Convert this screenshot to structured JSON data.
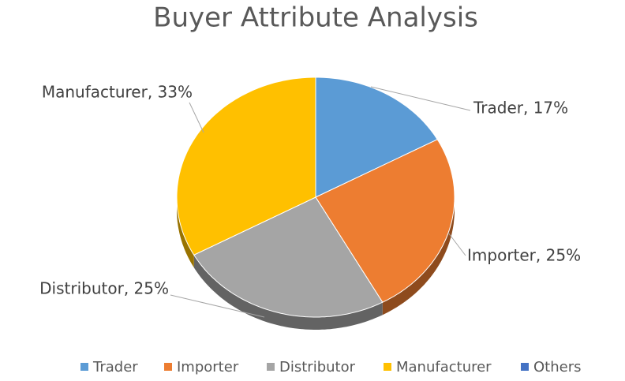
{
  "chart_data": {
    "type": "pie",
    "title": "Buyer Attribute Analysis",
    "categories": [
      "Trader",
      "Importer",
      "Distributor",
      "Manufacturer",
      "Others"
    ],
    "values": [
      17,
      25,
      25,
      33,
      0
    ],
    "value_labels": [
      "Trader, 17%",
      "Importer, 25%",
      "Distributor, 25%",
      "Manufacturer, 33%",
      null
    ],
    "colors": [
      "#5b9bd5",
      "#ed7d31",
      "#a5a5a5",
      "#ffc000",
      "#4472c4"
    ],
    "legend": "bottom"
  }
}
